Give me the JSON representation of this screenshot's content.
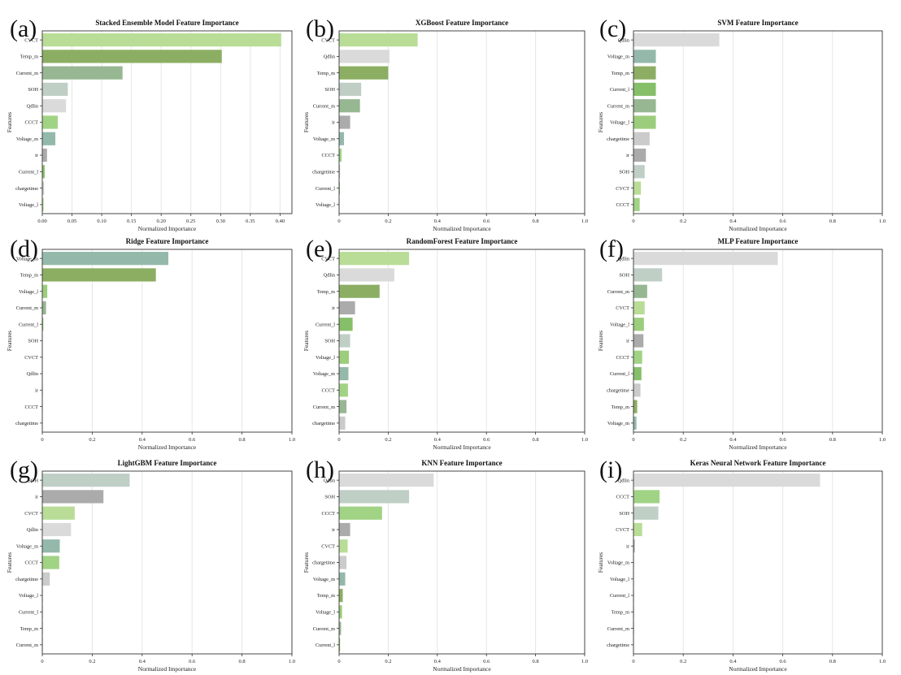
{
  "colors": {
    "CVCT": "#b9dd97",
    "Temp_m": "#8cae63",
    "Current_m": "#97b692",
    "SOH": "#bfcfc6",
    "Qdlin": "#dadada",
    "CCCT": "#a1d385",
    "Voltage_m": "#94b9ab",
    "ir": "#ababab",
    "Current_l": "#86bf6a",
    "chargetime": "#cbcbcb",
    "Voltage_l": "#9ccd7c"
  },
  "chart_data": [
    {
      "panel_label": "(a)",
      "type": "bar",
      "orientation": "horizontal",
      "title": "Stacked Ensemble Model Feature Importance",
      "xlabel": "Normalized Importance",
      "ylabel": "Features",
      "xlim": [
        0,
        0.42
      ],
      "xticks": [
        0.0,
        0.05,
        0.1,
        0.15,
        0.2,
        0.25,
        0.3,
        0.35,
        0.4
      ],
      "xtick_labels": [
        "0.00",
        "0.05",
        "0.10",
        "0.15",
        "0.20",
        "0.25",
        "0.30",
        "0.35",
        "0.40"
      ],
      "categories": [
        "CVCT",
        "Temp_m",
        "Current_m",
        "SOH",
        "Qdlin",
        "CCCT",
        "Voltage_m",
        "ir",
        "Current_l",
        "chargetime",
        "Voltage_l"
      ],
      "values": [
        0.402,
        0.302,
        0.135,
        0.043,
        0.04,
        0.026,
        0.022,
        0.008,
        0.004,
        0.003,
        0.002
      ]
    },
    {
      "panel_label": "(b)",
      "type": "bar",
      "orientation": "horizontal",
      "title": "XGBoost Feature Importance",
      "xlabel": "Normalized Importance",
      "ylabel": "Features",
      "xlim": [
        0,
        1.0
      ],
      "xticks": [
        0,
        0.2,
        0.4,
        0.6,
        0.8,
        1.0
      ],
      "xtick_labels": [
        "0",
        "0.2",
        "0.4",
        "0.6",
        "0.8",
        "1.0"
      ],
      "categories": [
        "CVCT",
        "Qdlin",
        "Temp_m",
        "SOH",
        "Current_m",
        "ir",
        "Voltage_m",
        "CCCT",
        "chargetime",
        "Current_l",
        "Voltage_l"
      ],
      "values": [
        0.32,
        0.205,
        0.2,
        0.09,
        0.085,
        0.045,
        0.02,
        0.01,
        0.004,
        0.003,
        0.002
      ]
    },
    {
      "panel_label": "(c)",
      "type": "bar",
      "orientation": "horizontal",
      "title": "SVM Feature Importance",
      "xlabel": "Normalized Importance",
      "ylabel": "Features",
      "xlim": [
        0,
        1.0
      ],
      "xticks": [
        0,
        0.2,
        0.4,
        0.6,
        0.8,
        1.0
      ],
      "xtick_labels": [
        "0",
        "0.2",
        "0.4",
        "0.6",
        "0.8",
        "1.0"
      ],
      "categories": [
        "Qdlin",
        "Voltage_m",
        "Temp_m",
        "Current_l",
        "Current_m",
        "Voltage_l",
        "chargetime",
        "ir",
        "SOH",
        "CVCT",
        "CCCT"
      ],
      "values": [
        0.345,
        0.09,
        0.09,
        0.09,
        0.09,
        0.09,
        0.065,
        0.05,
        0.045,
        0.03,
        0.025
      ]
    },
    {
      "panel_label": "(d)",
      "type": "bar",
      "orientation": "horizontal",
      "title": "Ridge Feature Importance",
      "xlabel": "Normalized Importance",
      "ylabel": "Features",
      "xlim": [
        0,
        1.0
      ],
      "xticks": [
        0,
        0.2,
        0.4,
        0.6,
        0.8,
        1.0
      ],
      "xtick_labels": [
        "0",
        "0.2",
        "0.4",
        "0.6",
        "0.8",
        "1.0"
      ],
      "categories": [
        "Voltage_m",
        "Temp_m",
        "Voltage_l",
        "Current_m",
        "Current_l",
        "SOH",
        "CVCT",
        "Qdlin",
        "ir",
        "CCCT",
        "chargetime"
      ],
      "values": [
        0.505,
        0.455,
        0.02,
        0.015,
        0.004,
        0.002,
        0.001,
        0.001,
        0.001,
        0.001,
        0.001
      ]
    },
    {
      "panel_label": "(e)",
      "type": "bar",
      "orientation": "horizontal",
      "title": "RandomForest Feature Importance",
      "xlabel": "Normalized Importance",
      "ylabel": "Features",
      "xlim": [
        0,
        1.0
      ],
      "xticks": [
        0,
        0.2,
        0.4,
        0.6,
        0.8,
        1.0
      ],
      "xtick_labels": [
        "0",
        "0.2",
        "0.4",
        "0.6",
        "0.8",
        "1.0"
      ],
      "categories": [
        "CVCT",
        "Qdlin",
        "Temp_m",
        "ir",
        "Current_l",
        "SOH",
        "Voltage_l",
        "Voltage_m",
        "CCCT",
        "Current_m",
        "chargetime"
      ],
      "values": [
        0.285,
        0.225,
        0.165,
        0.065,
        0.055,
        0.045,
        0.04,
        0.038,
        0.036,
        0.03,
        0.025
      ]
    },
    {
      "panel_label": "(f)",
      "type": "bar",
      "orientation": "horizontal",
      "title": "MLP Feature Importance",
      "xlabel": "Normalized Importance",
      "ylabel": "Features",
      "xlim": [
        0,
        1.0
      ],
      "xticks": [
        0,
        0.2,
        0.4,
        0.6,
        0.8,
        1.0
      ],
      "xtick_labels": [
        "0",
        "0.2",
        "0.4",
        "0.6",
        "0.8",
        "1.0"
      ],
      "categories": [
        "Qdlin",
        "SOH",
        "Current_m",
        "CVCT",
        "Voltage_l",
        "ir",
        "CCCT",
        "Current_l",
        "chargetime",
        "Temp_m",
        "Voltage_m"
      ],
      "values": [
        0.58,
        0.115,
        0.055,
        0.045,
        0.042,
        0.04,
        0.035,
        0.032,
        0.028,
        0.015,
        0.012
      ]
    },
    {
      "panel_label": "(g)",
      "type": "bar",
      "orientation": "horizontal",
      "title": "LightGBM Feature Importance",
      "xlabel": "Normalized Importance",
      "ylabel": "Features",
      "xlim": [
        0,
        1.0
      ],
      "xticks": [
        0,
        0.2,
        0.4,
        0.6,
        0.8,
        1.0
      ],
      "xtick_labels": [
        "0",
        "0.2",
        "0.4",
        "0.6",
        "0.8",
        "1.0"
      ],
      "categories": [
        "SOH",
        "ir",
        "CVCT",
        "Qdlin",
        "Voltage_m",
        "CCCT",
        "chargetime",
        "Voltage_l",
        "Current_l",
        "Temp_m",
        "Current_m"
      ],
      "values": [
        0.35,
        0.245,
        0.13,
        0.115,
        0.07,
        0.068,
        0.03,
        0.002,
        0.001,
        0.001,
        0.001
      ]
    },
    {
      "panel_label": "(h)",
      "type": "bar",
      "orientation": "horizontal",
      "title": "KNN Feature Importance",
      "xlabel": "Normalized Importance",
      "ylabel": "Features",
      "xlim": [
        0,
        1.0
      ],
      "xticks": [
        0,
        0.2,
        0.4,
        0.6,
        0.8,
        1.0
      ],
      "xtick_labels": [
        "0",
        "0.2",
        "0.4",
        "0.6",
        "0.8",
        "1.0"
      ],
      "categories": [
        "Qdlin",
        "SOH",
        "CCCT",
        "ir",
        "CVCT",
        "chargetime",
        "Voltage_m",
        "Temp_m",
        "Voltage_l",
        "Current_m",
        "Current_l"
      ],
      "values": [
        0.385,
        0.285,
        0.175,
        0.045,
        0.035,
        0.03,
        0.025,
        0.015,
        0.012,
        0.008,
        0.004
      ]
    },
    {
      "panel_label": "(i)",
      "type": "bar",
      "orientation": "horizontal",
      "title": "Keras Neural Network Feature Importance",
      "xlabel": "Normalized Importance",
      "ylabel": "Features",
      "xlim": [
        0,
        1.0
      ],
      "xticks": [
        0,
        0.2,
        0.4,
        0.6,
        0.8,
        1.0
      ],
      "xtick_labels": [
        "0",
        "0.2",
        "0.4",
        "0.6",
        "0.8",
        "1.0"
      ],
      "categories": [
        "Qdlin",
        "CCCT",
        "SOH",
        "CVCT",
        "ir",
        "Voltage_m",
        "Voltage_l",
        "Current_l",
        "Temp_m",
        "Current_m",
        "chargetime"
      ],
      "values": [
        0.75,
        0.105,
        0.1,
        0.035,
        0.005,
        0.002,
        0.001,
        0.001,
        0.001,
        0.001,
        0.001
      ]
    }
  ]
}
